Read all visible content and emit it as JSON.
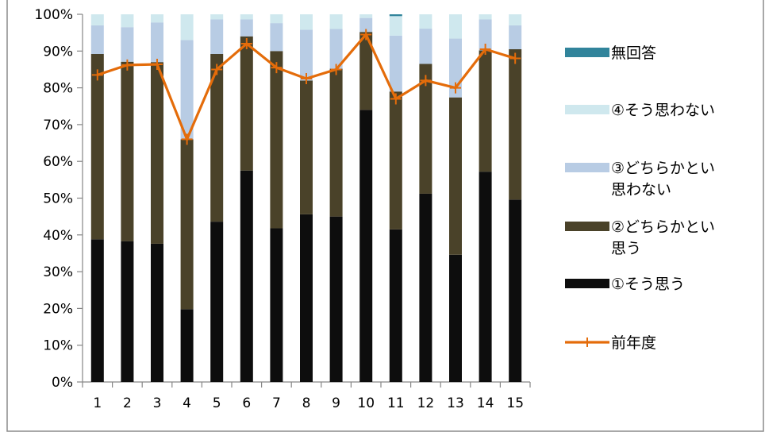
{
  "chart_data": {
    "type": "bar",
    "stacked": true,
    "percent_stacked": true,
    "categories": [
      "1",
      "2",
      "3",
      "4",
      "5",
      "6",
      "7",
      "8",
      "9",
      "10",
      "11",
      "12",
      "13",
      "14",
      "15"
    ],
    "ylim": [
      0,
      100
    ],
    "y_ticks": [
      "0%",
      "10%",
      "20%",
      "30%",
      "40%",
      "50%",
      "60%",
      "70%",
      "80%",
      "90%",
      "100%"
    ],
    "grid": false,
    "legend_position": "right",
    "series": [
      {
        "name": "①そう思う",
        "color": "#0d0d0d",
        "values": [
          38.8,
          38.3,
          37.6,
          19.8,
          43.6,
          57.5,
          41.8,
          45.6,
          45.0,
          74.0,
          41.5,
          51.2,
          34.6,
          57.2,
          49.6
        ]
      },
      {
        "name": "②どちらかといえば思う",
        "color": "#4a4229",
        "values": [
          50.4,
          48.8,
          49.4,
          46.2,
          45.6,
          36.5,
          48.2,
          36.4,
          40.2,
          21.2,
          37.5,
          35.3,
          42.8,
          33.0,
          40.9
        ]
      },
      {
        "name": "③どちらかといえば思わない",
        "color": "#b8cce4",
        "values": [
          7.8,
          9.4,
          10.8,
          27.0,
          9.4,
          4.6,
          7.6,
          13.8,
          10.8,
          3.8,
          15.2,
          9.6,
          16.0,
          8.4,
          6.5
        ]
      },
      {
        "name": "④そう思わない",
        "color": "#cfe8ee",
        "values": [
          3.0,
          3.5,
          2.2,
          7.0,
          1.4,
          1.4,
          2.4,
          4.2,
          4.0,
          1.0,
          5.3,
          3.9,
          6.6,
          1.4,
          3.0
        ]
      },
      {
        "name": "無回答",
        "color": "#31849b",
        "values": [
          0,
          0,
          0,
          0,
          0,
          0,
          0,
          0,
          0,
          0,
          0.5,
          0,
          0,
          0,
          0
        ]
      }
    ],
    "line_series": {
      "name": "前年度",
      "color": "#e46c0a",
      "values": [
        83.5,
        86.2,
        86.4,
        66.0,
        85.0,
        92.0,
        85.5,
        82.5,
        85.0,
        94.5,
        77.0,
        82.0,
        80.0,
        90.5,
        88.0
      ]
    },
    "legend": {
      "entries": [
        {
          "lines": [
            "無回答"
          ],
          "series": "無回答",
          "kind": "box"
        },
        {
          "lines": [
            "④そう思わない"
          ],
          "series": "④そう思わない",
          "kind": "box"
        },
        {
          "lines": [
            "③どちらかとい",
            "思わない"
          ],
          "series": "③どちらかといえば思わない",
          "kind": "box"
        },
        {
          "lines": [
            "②どちらかとい",
            "思う"
          ],
          "series": "②どちらかといえば思う",
          "kind": "box"
        },
        {
          "lines": [
            "①そう思う"
          ],
          "series": "①そう思う",
          "kind": "box"
        },
        {
          "lines": [
            "前年度"
          ],
          "series": "前年度",
          "kind": "line"
        }
      ]
    }
  }
}
